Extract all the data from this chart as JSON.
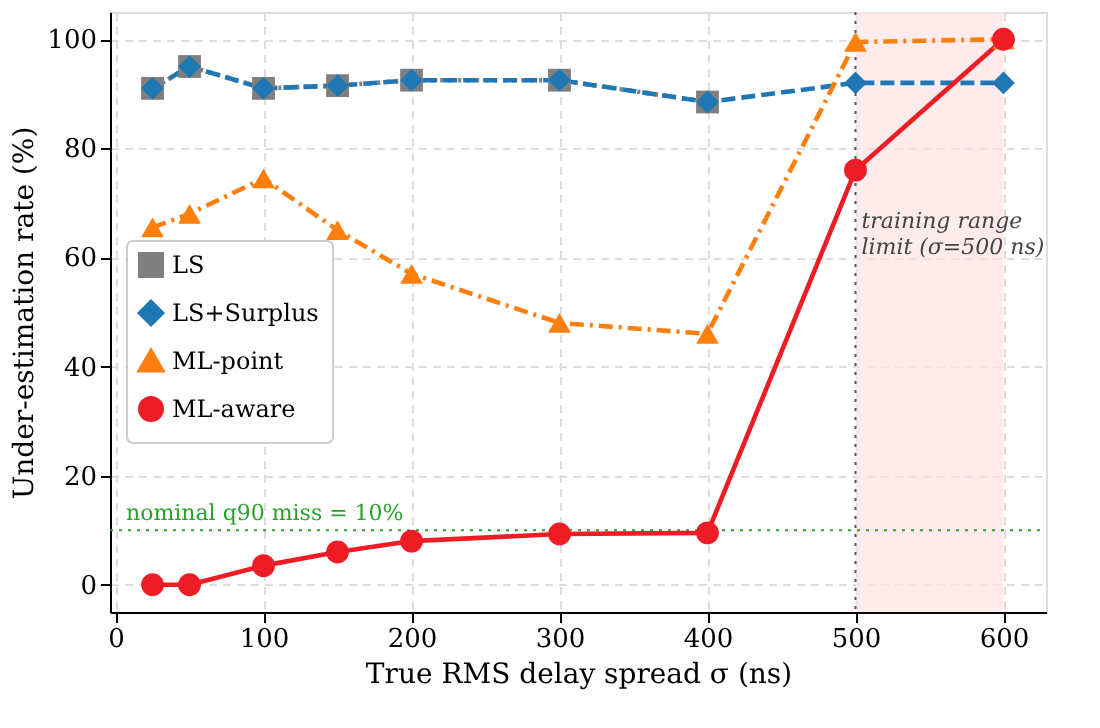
{
  "chart_data": {
    "type": "line",
    "xlabel": "True RMS delay spread σ (ns)",
    "ylabel": "Under-estimation rate (%)",
    "x": [
      25,
      50,
      100,
      150,
      200,
      300,
      400,
      500,
      600
    ],
    "series": [
      {
        "name": "LS",
        "color": "#7f7f7f",
        "marker": "square",
        "line_style": "dotted",
        "values": [
          91,
          95,
          91,
          91.5,
          92.5,
          92.5,
          88.5,
          null,
          null
        ]
      },
      {
        "name": "LS+Surplus",
        "color": "#1f77b4",
        "marker": "diamond",
        "line_style": "dashed",
        "values": [
          91,
          95,
          91,
          91.5,
          92.5,
          92.5,
          88.5,
          92,
          92
        ]
      },
      {
        "name": "ML-point",
        "color": "#ff7f0e",
        "marker": "triangle",
        "line_style": "dashdot",
        "values": [
          65.5,
          68,
          74.5,
          65,
          57,
          48,
          46,
          99.5,
          100
        ]
      },
      {
        "name": "ML-aware",
        "color": "#ee1c25",
        "marker": "circle",
        "line_style": "solid",
        "values": [
          0,
          0,
          3.5,
          6,
          8,
          9.3,
          9.5,
          76,
          100
        ]
      }
    ],
    "xlim": [
      -3.75,
      628.75
    ],
    "ylim": [
      -5,
      105
    ],
    "xticks": [
      0,
      100,
      200,
      300,
      400,
      500,
      600
    ],
    "yticks": [
      0,
      20,
      40,
      60,
      80,
      100
    ],
    "ref_lines": [
      {
        "axis": "y",
        "value": 10,
        "label": "nominal q90 miss = 10%",
        "color": "#2ca02c",
        "line_style": "dotted"
      },
      {
        "axis": "x",
        "value": 500,
        "label": "training range limit (σ=500 ns)",
        "color": "#555555",
        "line_style": "dotted"
      }
    ],
    "bands": [
      {
        "axis": "x",
        "from": 500,
        "to": 600,
        "color": "#fde3e3"
      }
    ],
    "grid": true,
    "legend": "center left"
  }
}
